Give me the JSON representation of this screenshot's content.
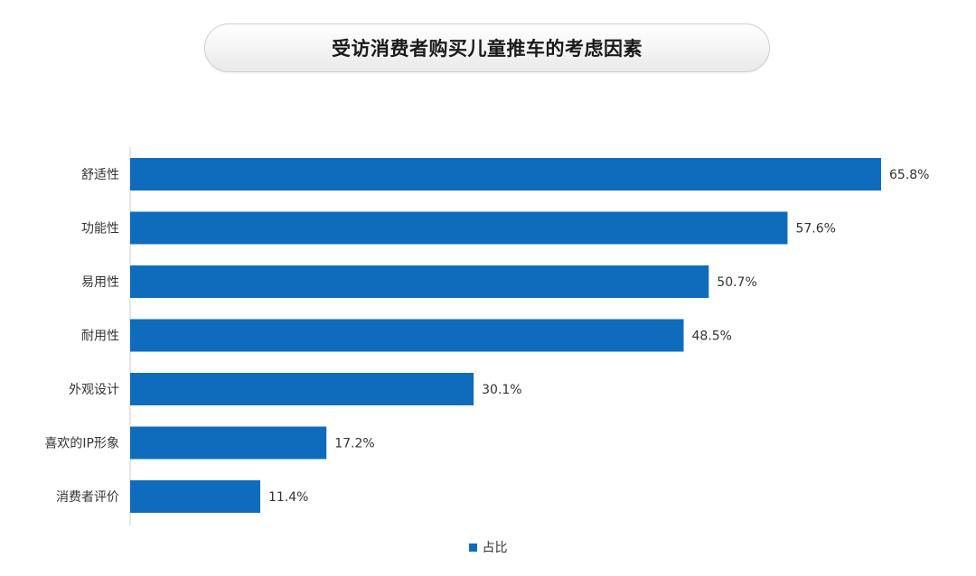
{
  "title": "受访消费者购买儿童推车的考虑因素",
  "colors": {
    "bar": "#0f6cbd",
    "axis": "#cccccc",
    "text": "#333333"
  },
  "chart_data": {
    "type": "bar",
    "orientation": "horizontal",
    "categories": [
      "舒适性",
      "功能性",
      "易用性",
      "耐用性",
      "外观设计",
      "喜欢的IP形象",
      "消费者评价"
    ],
    "series": [
      {
        "name": "占比",
        "values": [
          65.8,
          57.6,
          50.7,
          48.5,
          30.1,
          17.2,
          11.4
        ]
      }
    ],
    "value_labels": [
      "65.8%",
      "57.6%",
      "50.7%",
      "48.5%",
      "30.1%",
      "17.2%",
      "11.4%"
    ],
    "unit": "%",
    "xlim": [
      0,
      65.8
    ],
    "grid": false,
    "legend_position": "bottom"
  }
}
